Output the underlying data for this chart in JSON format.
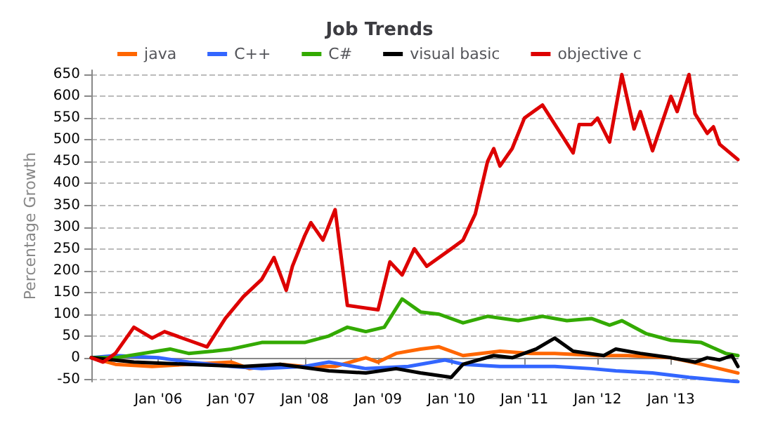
{
  "chart_data": {
    "type": "line",
    "title": "Job Trends",
    "ylabel": "Percentage Growth",
    "xlim": [
      "2005-02-01",
      "2013-12-01"
    ],
    "ylim": [
      -55,
      660
    ],
    "xticks": [
      {
        "value": "2006-01-01",
        "label": "Jan '06"
      },
      {
        "value": "2007-01-01",
        "label": "Jan '07"
      },
      {
        "value": "2008-01-01",
        "label": "Jan '08"
      },
      {
        "value": "2009-01-01",
        "label": "Jan '09"
      },
      {
        "value": "2010-01-01",
        "label": "Jan '10"
      },
      {
        "value": "2011-01-01",
        "label": "Jan '11"
      },
      {
        "value": "2012-01-01",
        "label": "Jan '12"
      },
      {
        "value": "2013-01-01",
        "label": "Jan '13"
      }
    ],
    "yticks": [
      -50,
      0,
      50,
      100,
      150,
      200,
      250,
      300,
      350,
      400,
      450,
      500,
      550,
      600,
      650
    ],
    "grid": "y",
    "legend": "top",
    "marker": "none",
    "line_style": "solid",
    "series": [
      {
        "name": "java",
        "color": "#ff6600",
        "x": [
          "2005-02",
          "2005-06",
          "2005-12",
          "2006-06",
          "2007-01",
          "2007-04",
          "2007-09",
          "2008-01",
          "2008-06",
          "2008-11",
          "2009-01",
          "2009-04",
          "2009-08",
          "2009-11",
          "2010-03",
          "2010-09",
          "2011-02",
          "2011-06",
          "2012-01",
          "2012-06",
          "2013-01",
          "2013-06",
          "2013-12"
        ],
        "values": [
          0,
          -15,
          -20,
          -15,
          -10,
          -25,
          -15,
          -20,
          -20,
          0,
          -10,
          10,
          20,
          25,
          5,
          15,
          10,
          10,
          5,
          5,
          0,
          -15,
          -35
        ]
      },
      {
        "name": "C++",
        "color": "#3366ff",
        "x": [
          "2005-02",
          "2005-06",
          "2006-01",
          "2006-06",
          "2007-01",
          "2007-06",
          "2008-01",
          "2008-05",
          "2008-11",
          "2009-06",
          "2009-12",
          "2010-03",
          "2010-09",
          "2011-06",
          "2011-12",
          "2012-04",
          "2012-10",
          "2013-04",
          "2013-12"
        ],
        "values": [
          0,
          5,
          0,
          -10,
          -20,
          -25,
          -20,
          -10,
          -25,
          -20,
          -5,
          -15,
          -20,
          -20,
          -25,
          -30,
          -35,
          -45,
          -55
        ]
      },
      {
        "name": "C#",
        "color": "#33aa00",
        "x": [
          "2005-02",
          "2005-06",
          "2006-03",
          "2006-06",
          "2006-10",
          "2007-01",
          "2007-06",
          "2008-01",
          "2008-05",
          "2008-08",
          "2008-11",
          "2009-02",
          "2009-05",
          "2009-08",
          "2009-11",
          "2010-03",
          "2010-07",
          "2010-12",
          "2011-04",
          "2011-08",
          "2011-12",
          "2012-03",
          "2012-05",
          "2012-09",
          "2013-01",
          "2013-06",
          "2013-10",
          "2013-12"
        ],
        "values": [
          0,
          0,
          20,
          10,
          15,
          20,
          35,
          35,
          50,
          70,
          60,
          70,
          135,
          105,
          100,
          80,
          95,
          85,
          95,
          85,
          90,
          75,
          85,
          55,
          40,
          35,
          10,
          5
        ]
      },
      {
        "name": "visual basic",
        "color": "#000000",
        "x": [
          "2005-02",
          "2005-09",
          "2006-06",
          "2007-03",
          "2007-09",
          "2008-05",
          "2008-11",
          "2009-04",
          "2009-08",
          "2010-01",
          "2010-03",
          "2010-08",
          "2010-11",
          "2011-03",
          "2011-06",
          "2011-09",
          "2012-02",
          "2012-04",
          "2012-08",
          "2013-01",
          "2013-05",
          "2013-07",
          "2013-09",
          "2013-11",
          "2013-12"
        ],
        "values": [
          0,
          -10,
          -15,
          -20,
          -15,
          -30,
          -35,
          -25,
          -35,
          -45,
          -15,
          5,
          0,
          20,
          45,
          15,
          5,
          20,
          10,
          0,
          -10,
          0,
          -5,
          5,
          -20
        ]
      },
      {
        "name": "objective c",
        "color": "#dd0000",
        "x": [
          "2005-02",
          "2005-04",
          "2005-06",
          "2005-09",
          "2005-12",
          "2006-02",
          "2006-06",
          "2006-09",
          "2006-12",
          "2007-03",
          "2007-06",
          "2007-08",
          "2007-10",
          "2007-11",
          "2008-01",
          "2008-02",
          "2008-04",
          "2008-06",
          "2008-08",
          "2009-01",
          "2009-03",
          "2009-05",
          "2009-07",
          "2009-09",
          "2010-01",
          "2010-03",
          "2010-05",
          "2010-07",
          "2010-08",
          "2010-09",
          "2010-11",
          "2011-01",
          "2011-04",
          "2011-09",
          "2011-10",
          "2011-12",
          "2012-01",
          "2012-03",
          "2012-05",
          "2012-07",
          "2012-08",
          "2012-10",
          "2013-01",
          "2013-02",
          "2013-04",
          "2013-05",
          "2013-07",
          "2013-08",
          "2013-09",
          "2013-12"
        ],
        "values": [
          0,
          -10,
          10,
          70,
          45,
          60,
          40,
          25,
          90,
          140,
          180,
          230,
          155,
          210,
          280,
          310,
          270,
          340,
          120,
          110,
          220,
          190,
          250,
          210,
          250,
          270,
          330,
          450,
          480,
          440,
          480,
          550,
          580,
          470,
          535,
          535,
          550,
          495,
          650,
          525,
          565,
          475,
          600,
          565,
          650,
          560,
          515,
          530,
          490,
          455
        ]
      }
    ]
  }
}
